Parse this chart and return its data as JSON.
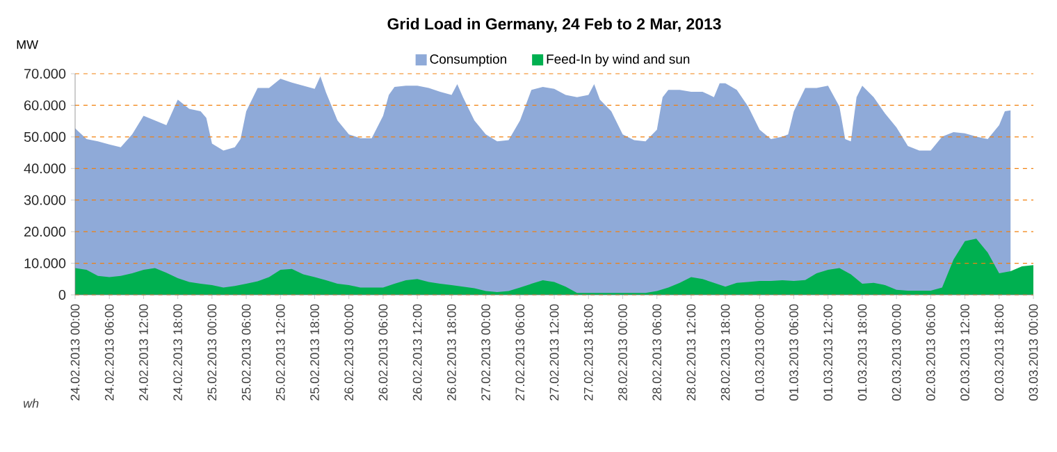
{
  "chart_data": {
    "type": "area",
    "title": "Grid Load in Germany, 24 Feb to 2 Mar, 2013",
    "ylabel": "MW",
    "annotations": [
      "wh"
    ],
    "xlim": [
      "2013-02-24T00:00",
      "2013-03-03T00:00"
    ],
    "xticks": [
      {
        "value": "2013-02-24T00:00",
        "label": "24.02.2013 00:00"
      },
      {
        "value": "2013-02-24T06:00",
        "label": "24.02.2013 06:00"
      },
      {
        "value": "2013-02-24T12:00",
        "label": "24.02.2013 12:00"
      },
      {
        "value": "2013-02-24T18:00",
        "label": "24.02.2013 18:00"
      },
      {
        "value": "2013-02-25T00:00",
        "label": "25.02.2013 00:00"
      },
      {
        "value": "2013-02-25T06:00",
        "label": "25.02.2013 06:00"
      },
      {
        "value": "2013-02-25T12:00",
        "label": "25.02.2013 12:00"
      },
      {
        "value": "2013-02-25T18:00",
        "label": "25.02.2013 18:00"
      },
      {
        "value": "2013-02-26T00:00",
        "label": "26.02.2013 00:00"
      },
      {
        "value": "2013-02-26T06:00",
        "label": "26.02.2013 06:00"
      },
      {
        "value": "2013-02-26T12:00",
        "label": "26.02.2013 12:00"
      },
      {
        "value": "2013-02-26T18:00",
        "label": "26.02.2013 18:00"
      },
      {
        "value": "2013-02-27T00:00",
        "label": "27.02.2013 00:00"
      },
      {
        "value": "2013-02-27T06:00",
        "label": "27.02.2013 06:00"
      },
      {
        "value": "2013-02-27T12:00",
        "label": "27.02.2013 12:00"
      },
      {
        "value": "2013-02-27T18:00",
        "label": "27.02.2013 18:00"
      },
      {
        "value": "2013-02-28T00:00",
        "label": "28.02.2013 00:00"
      },
      {
        "value": "2013-02-28T06:00",
        "label": "28.02.2013 06:00"
      },
      {
        "value": "2013-02-28T12:00",
        "label": "28.02.2013 12:00"
      },
      {
        "value": "2013-02-28T18:00",
        "label": "28.02.2013 18:00"
      },
      {
        "value": "2013-03-01T00:00",
        "label": "01.03.2013 00:00"
      },
      {
        "value": "2013-03-01T06:00",
        "label": "01.03.2013 06:00"
      },
      {
        "value": "2013-03-01T12:00",
        "label": "01.03.2013 12:00"
      },
      {
        "value": "2013-03-01T18:00",
        "label": "01.03.2013 18:00"
      },
      {
        "value": "2013-03-02T00:00",
        "label": "02.03.2013 00:00"
      },
      {
        "value": "2013-03-02T06:00",
        "label": "02.03.2013 06:00"
      },
      {
        "value": "2013-03-02T12:00",
        "label": "02.03.2013 12:00"
      },
      {
        "value": "2013-03-02T18:00",
        "label": "02.03.2013 18:00"
      },
      {
        "value": "2013-03-03T00:00",
        "label": "03.03.2013 00:00"
      }
    ],
    "ylim": [
      0,
      70000
    ],
    "yticks": [
      0,
      {
        "value": 10000,
        "label": "10.000"
      },
      {
        "value": 20000,
        "label": "20.000"
      },
      {
        "value": 30000,
        "label": "30.000"
      },
      {
        "value": 40000,
        "label": "40.000"
      },
      {
        "value": 50000,
        "label": "50.000"
      },
      {
        "value": 60000,
        "label": "60.000"
      },
      {
        "value": 70000,
        "label": "70.000"
      }
    ],
    "grid": "y",
    "legend": "top",
    "series": [
      {
        "name": "Consumption",
        "color": "#8faad8",
        "x": [
          "2013-02-24T00:00",
          "2013-02-24T02:00",
          "2013-02-24T04:00",
          "2013-02-24T06:00",
          "2013-02-24T08:00",
          "2013-02-24T10:00",
          "2013-02-24T12:00",
          "2013-02-24T14:00",
          "2013-02-24T16:00",
          "2013-02-24T18:00",
          "2013-02-24T20:00",
          "2013-02-24T22:00",
          "2013-02-24T23:00",
          "2013-02-25T00:00",
          "2013-02-25T02:00",
          "2013-02-25T04:00",
          "2013-02-25T05:00",
          "2013-02-25T06:00",
          "2013-02-25T08:00",
          "2013-02-25T10:00",
          "2013-02-25T12:00",
          "2013-02-25T14:00",
          "2013-02-25T16:00",
          "2013-02-25T18:00",
          "2013-02-25T19:00",
          "2013-02-25T20:00",
          "2013-02-25T22:00",
          "2013-02-26T00:00",
          "2013-02-26T02:00",
          "2013-02-26T04:00",
          "2013-02-26T06:00",
          "2013-02-26T07:00",
          "2013-02-26T08:00",
          "2013-02-26T10:00",
          "2013-02-26T12:00",
          "2013-02-26T14:00",
          "2013-02-26T16:00",
          "2013-02-26T18:00",
          "2013-02-26T19:00",
          "2013-02-26T20:00",
          "2013-02-26T22:00",
          "2013-02-27T00:00",
          "2013-02-27T02:00",
          "2013-02-27T04:00",
          "2013-02-27T06:00",
          "2013-02-27T08:00",
          "2013-02-27T10:00",
          "2013-02-27T12:00",
          "2013-02-27T14:00",
          "2013-02-27T16:00",
          "2013-02-27T18:00",
          "2013-02-27T19:00",
          "2013-02-27T20:00",
          "2013-02-27T22:00",
          "2013-02-28T00:00",
          "2013-02-28T02:00",
          "2013-02-28T04:00",
          "2013-02-28T06:00",
          "2013-02-28T07:00",
          "2013-02-28T08:00",
          "2013-02-28T10:00",
          "2013-02-28T12:00",
          "2013-02-28T14:00",
          "2013-02-28T16:00",
          "2013-02-28T17:00",
          "2013-02-28T18:00",
          "2013-02-28T20:00",
          "2013-02-28T22:00",
          "2013-03-01T00:00",
          "2013-03-01T02:00",
          "2013-03-01T04:00",
          "2013-03-01T05:00",
          "2013-03-01T06:00",
          "2013-03-01T08:00",
          "2013-03-01T10:00",
          "2013-03-01T12:00",
          "2013-03-01T14:00",
          "2013-03-01T15:00",
          "2013-03-01T16:00",
          "2013-03-01T17:00",
          "2013-03-01T18:00",
          "2013-03-01T20:00",
          "2013-03-01T22:00",
          "2013-03-02T00:00",
          "2013-03-02T02:00",
          "2013-03-02T04:00",
          "2013-03-02T06:00",
          "2013-03-02T08:00",
          "2013-03-02T10:00",
          "2013-03-02T12:00",
          "2013-03-02T14:00",
          "2013-03-02T16:00",
          "2013-03-02T18:00",
          "2013-03-02T19:00",
          "2013-03-02T20:00"
        ],
        "values": [
          52700,
          49300,
          48600,
          47600,
          46700,
          50800,
          56700,
          55200,
          53700,
          61800,
          58900,
          58100,
          56000,
          47900,
          45700,
          46700,
          49300,
          58100,
          65500,
          65500,
          68400,
          67200,
          66200,
          65200,
          69200,
          64000,
          55200,
          50800,
          49600,
          49600,
          56700,
          63300,
          65800,
          66200,
          66200,
          65500,
          64300,
          63300,
          66700,
          62600,
          55200,
          50800,
          48600,
          49000,
          55200,
          64900,
          65800,
          65200,
          63300,
          62600,
          63300,
          66700,
          61800,
          58100,
          50800,
          49000,
          48600,
          52300,
          62600,
          64900,
          64900,
          64300,
          64300,
          62600,
          67000,
          67000,
          64900,
          59600,
          52300,
          49300,
          50100,
          50800,
          58100,
          65500,
          65500,
          66200,
          59600,
          49300,
          48600,
          62600,
          66200,
          62600,
          57400,
          53000,
          47100,
          45700,
          45700,
          50100,
          51500,
          51100,
          50100,
          49300,
          53700,
          58100,
          58400
        ]
      },
      {
        "name": "Feed-In by wind and sun",
        "color": "#00b050",
        "x": [
          "2013-02-24T00:00",
          "2013-02-24T02:00",
          "2013-02-24T04:00",
          "2013-02-24T06:00",
          "2013-02-24T08:00",
          "2013-02-24T10:00",
          "2013-02-24T12:00",
          "2013-02-24T14:00",
          "2013-02-24T16:00",
          "2013-02-24T18:00",
          "2013-02-24T20:00",
          "2013-02-24T22:00",
          "2013-02-25T00:00",
          "2013-02-25T02:00",
          "2013-02-25T04:00",
          "2013-02-25T06:00",
          "2013-02-25T08:00",
          "2013-02-25T10:00",
          "2013-02-25T12:00",
          "2013-02-25T14:00",
          "2013-02-25T16:00",
          "2013-02-25T18:00",
          "2013-02-25T20:00",
          "2013-02-25T22:00",
          "2013-02-26T00:00",
          "2013-02-26T02:00",
          "2013-02-26T04:00",
          "2013-02-26T06:00",
          "2013-02-26T08:00",
          "2013-02-26T10:00",
          "2013-02-26T12:00",
          "2013-02-26T14:00",
          "2013-02-26T16:00",
          "2013-02-26T18:00",
          "2013-02-26T20:00",
          "2013-02-26T22:00",
          "2013-02-27T00:00",
          "2013-02-27T02:00",
          "2013-02-27T04:00",
          "2013-02-27T06:00",
          "2013-02-27T08:00",
          "2013-02-27T10:00",
          "2013-02-27T12:00",
          "2013-02-27T14:00",
          "2013-02-27T16:00",
          "2013-02-27T18:00",
          "2013-02-27T20:00",
          "2013-02-27T22:00",
          "2013-02-28T00:00",
          "2013-02-28T02:00",
          "2013-02-28T04:00",
          "2013-02-28T06:00",
          "2013-02-28T08:00",
          "2013-02-28T10:00",
          "2013-02-28T12:00",
          "2013-02-28T14:00",
          "2013-02-28T16:00",
          "2013-02-28T18:00",
          "2013-02-28T20:00",
          "2013-02-28T22:00",
          "2013-03-01T00:00",
          "2013-03-01T02:00",
          "2013-03-01T04:00",
          "2013-03-01T06:00",
          "2013-03-01T08:00",
          "2013-03-01T10:00",
          "2013-03-01T12:00",
          "2013-03-01T14:00",
          "2013-03-01T16:00",
          "2013-03-01T18:00",
          "2013-03-01T20:00",
          "2013-03-01T22:00",
          "2013-03-02T00:00",
          "2013-03-02T02:00",
          "2013-03-02T04:00",
          "2013-03-02T06:00",
          "2013-03-02T08:00",
          "2013-03-02T10:00",
          "2013-03-02T12:00",
          "2013-03-02T14:00",
          "2013-03-02T16:00",
          "2013-03-02T18:00",
          "2013-03-02T20:00",
          "2013-03-02T22:00",
          "2013-03-03T00:00"
        ],
        "values": [
          8500,
          7900,
          6000,
          5600,
          6000,
          6800,
          7900,
          8500,
          7000,
          5300,
          4100,
          3500,
          3100,
          2300,
          2800,
          3500,
          4300,
          5600,
          7900,
          8200,
          6500,
          5600,
          4600,
          3500,
          3100,
          2300,
          2300,
          2300,
          3500,
          4600,
          5000,
          4100,
          3500,
          3100,
          2600,
          2100,
          1200,
          900,
          1200,
          2300,
          3500,
          4600,
          4100,
          2600,
          600,
          600,
          600,
          600,
          600,
          600,
          600,
          1200,
          2300,
          3800,
          5600,
          5000,
          3800,
          2600,
          3800,
          4100,
          4400,
          4400,
          4600,
          4400,
          4700,
          6800,
          7900,
          8500,
          6500,
          3500,
          3800,
          3100,
          1600,
          1300,
          1300,
          1300,
          2300,
          11200,
          17000,
          17800,
          13400,
          6800,
          7500,
          9000,
          9400
        ]
      }
    ]
  }
}
